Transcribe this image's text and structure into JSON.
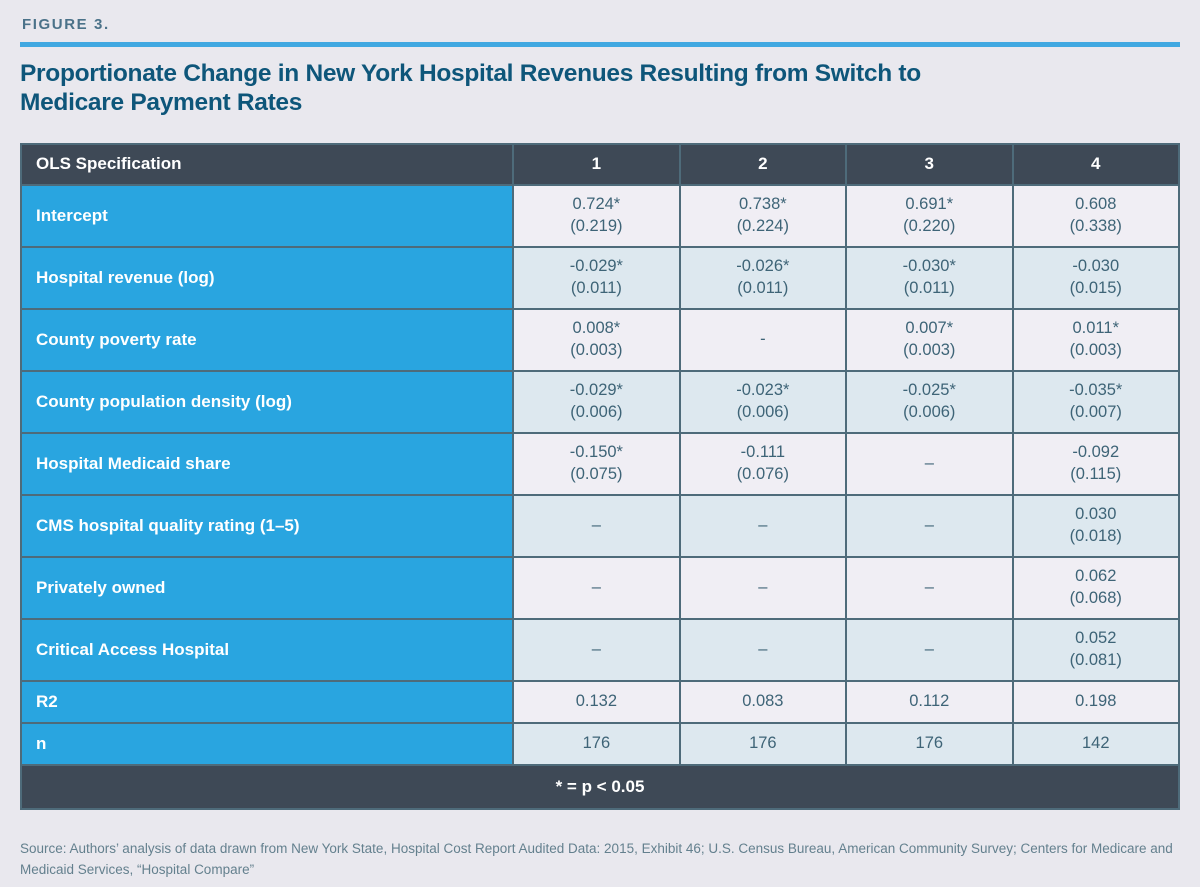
{
  "figure_label": "FIGURE 3.",
  "title": "Proportionate Change in New York Hospital Revenues Resulting from Switch to\nMedicare Payment Rates",
  "colors": {
    "accent_blue": "#41a8e1",
    "row_label_blue": "#29a5e0",
    "header_slate": "#3e4956",
    "title_blue": "#0e567a",
    "cell_text": "#3e6477",
    "stripe_light": "#f0eef4",
    "stripe_blue": "#dde8ef"
  },
  "table": {
    "header": [
      "OLS Specification",
      "1",
      "2",
      "3",
      "4"
    ],
    "rows": [
      {
        "label": "Intercept",
        "cells": [
          "0.724*\n(0.219)",
          "0.738*\n(0.224)",
          "0.691*\n(0.220)",
          "0.608\n(0.338)"
        ]
      },
      {
        "label": "Hospital revenue (log)",
        "cells": [
          "-0.029*\n(0.011)",
          "-0.026*\n(0.011)",
          "-0.030*\n(0.011)",
          "-0.030\n(0.015)"
        ]
      },
      {
        "label": "County poverty rate",
        "cells": [
          "0.008*\n(0.003)",
          "-",
          "0.007*\n(0.003)",
          "0.011*\n(0.003)"
        ]
      },
      {
        "label": "County population density (log)",
        "cells": [
          "-0.029*\n(0.006)",
          "-0.023*\n(0.006)",
          "-0.025*\n(0.006)",
          "-0.035*\n(0.007)"
        ]
      },
      {
        "label": "Hospital Medicaid share",
        "cells": [
          "-0.150*\n(0.075)",
          "-0.111\n(0.076)",
          "–",
          "-0.092\n(0.115)"
        ]
      },
      {
        "label": "CMS hospital quality rating (1–5)",
        "cells": [
          "–",
          "–",
          "–",
          "0.030\n(0.018)"
        ]
      },
      {
        "label": "Privately owned",
        "cells": [
          "–",
          "–",
          "–",
          "0.062\n(0.068)"
        ]
      },
      {
        "label": "Critical Access Hospital",
        "cells": [
          "–",
          "–",
          "–",
          "0.052\n(0.081)"
        ]
      },
      {
        "label": "R2",
        "cells": [
          "0.132",
          "0.083",
          "0.112",
          "0.198"
        ]
      },
      {
        "label": "n",
        "cells": [
          "176",
          "176",
          "176",
          "142"
        ]
      }
    ],
    "footnote": "* = p < 0.05"
  },
  "source": "Source: Authors’ analysis of data drawn from New York State, Hospital Cost Report Audited Data: 2015, Exhibit 46; U.S. Census Bureau, American Community Survey; Centers for Medicare and Medicaid Services, “Hospital Compare”"
}
